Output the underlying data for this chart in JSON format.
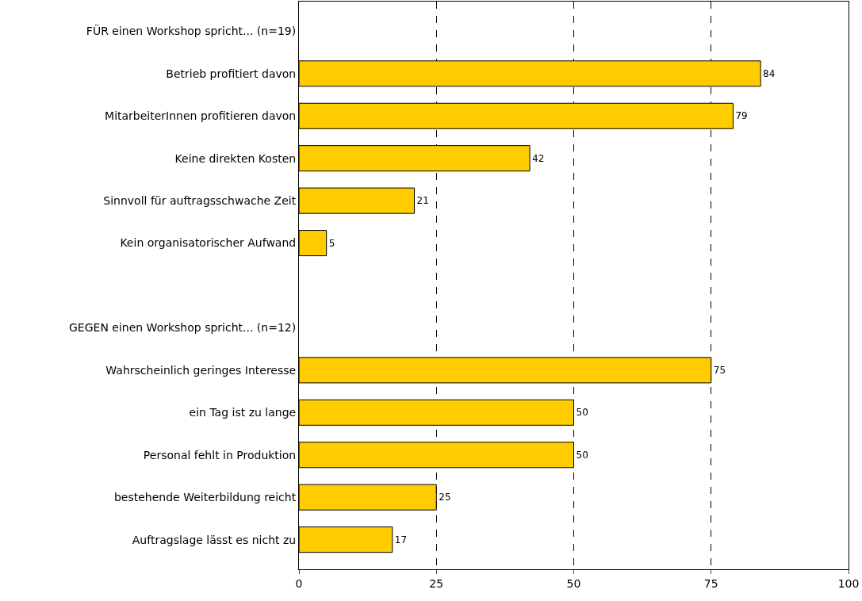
{
  "chart_data": {
    "type": "bar",
    "orientation": "horizontal",
    "categories": [
      "FÜR einen Workshop spricht... (n=19)",
      "Betrieb profitiert davon",
      "MitarbeiterInnen profitieren davon",
      "Keine direkten Kosten",
      "Sinnvoll für auftragsschwache Zeit",
      "Kein organisatorischer Aufwand",
      null,
      "GEGEN einen Workshop spricht... (n=12)",
      "Wahrscheinlich geringes Interesse",
      "ein Tag ist zu lange",
      "Personal fehlt in Produktion",
      "bestehende Weiterbildung reicht",
      "Auftragslage lässt es nicht zu"
    ],
    "values": [
      null,
      84,
      79,
      42,
      21,
      5,
      null,
      null,
      75,
      50,
      50,
      25,
      17
    ],
    "color": "#ffcc00",
    "xlim": [
      0,
      100
    ],
    "xticks": [
      0,
      25,
      50,
      75,
      100
    ],
    "grid": "x",
    "data_labels": true
  }
}
